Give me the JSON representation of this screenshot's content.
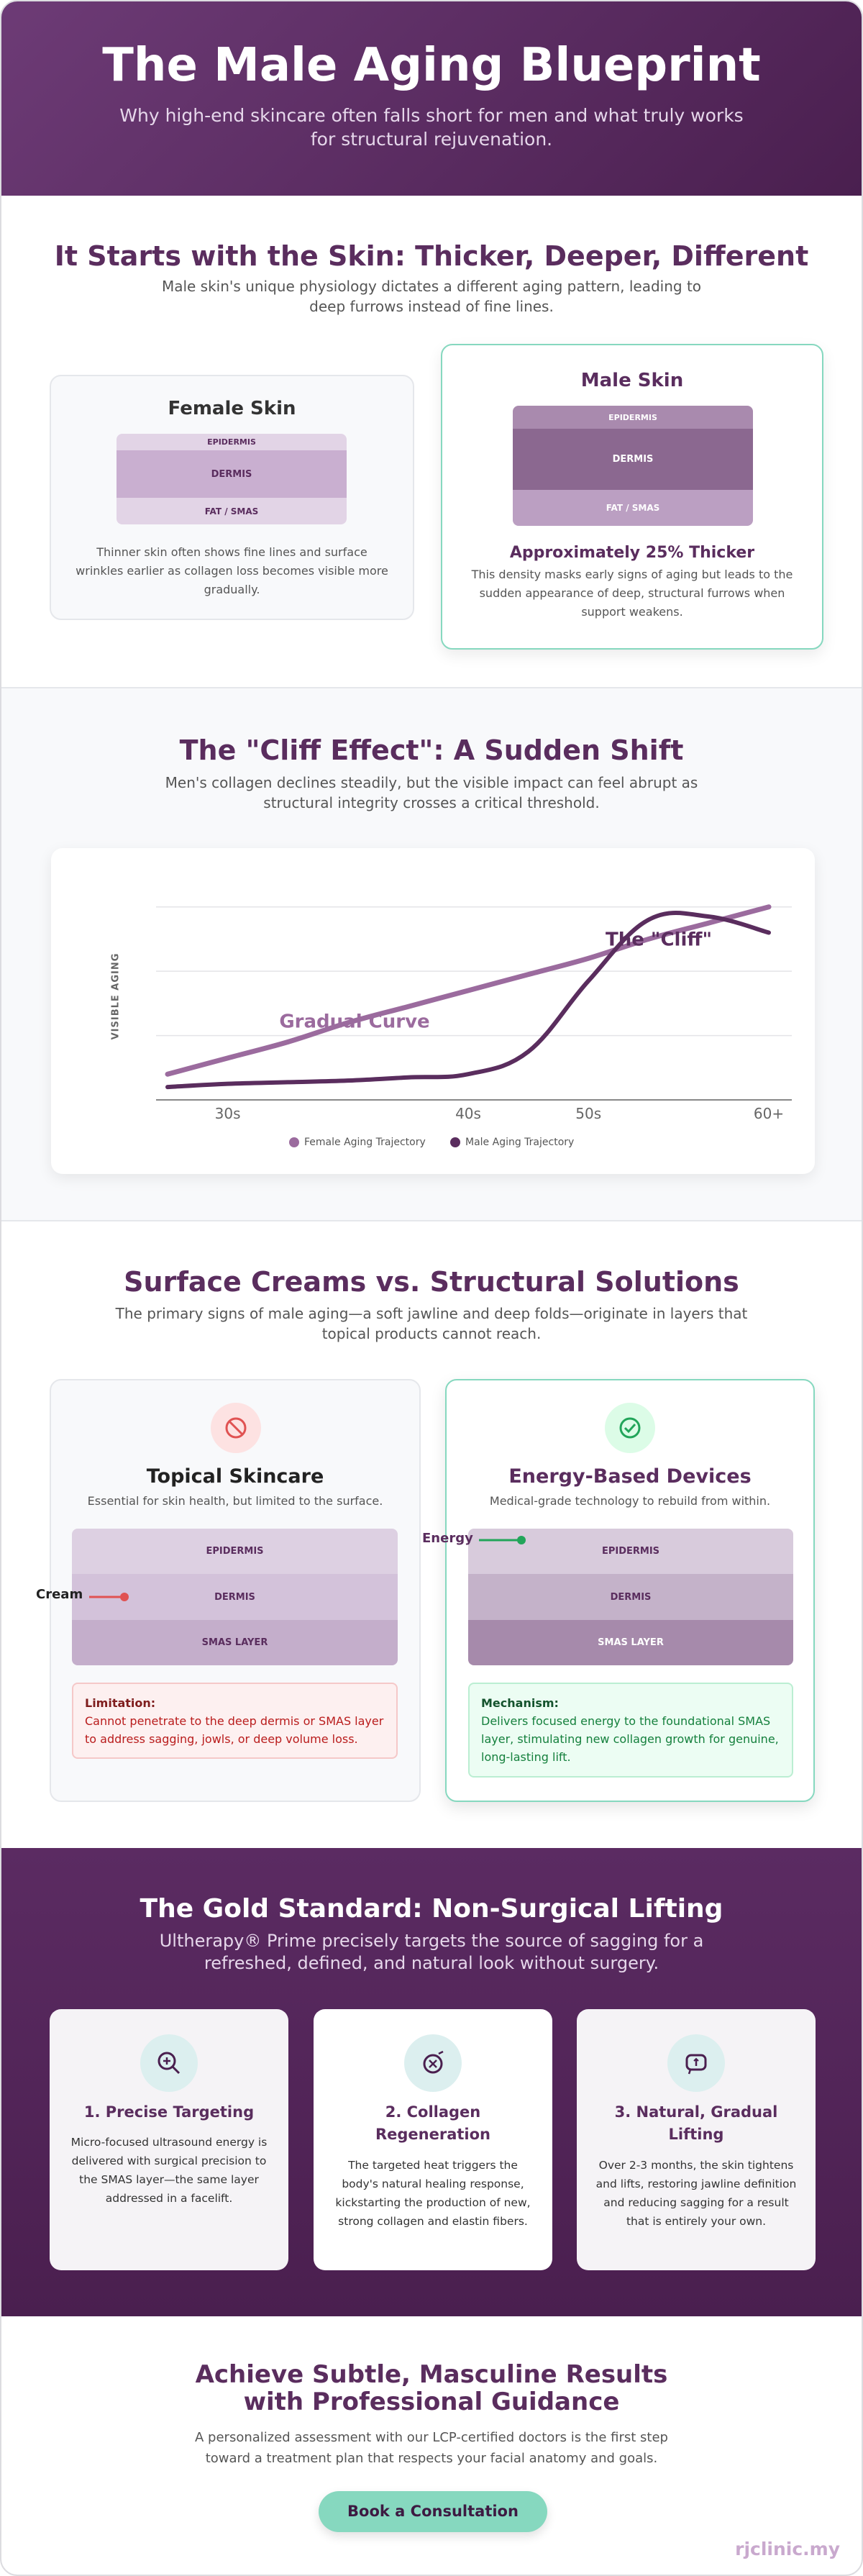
{
  "header": {
    "title": "The Male Aging Blueprint",
    "subtitle": "Why high-end skincare often falls short for men and what truly works for structural rejuvenation."
  },
  "skin": {
    "title": "It Starts with the Skin: Thicker, Deeper, Different",
    "subtitle": "Male skin's unique physiology dictates a different aging pattern, leading to deep furrows instead of fine lines.",
    "female": {
      "title": "Female Skin",
      "layers": [
        "EPIDERMIS",
        "DERMIS",
        "FAT / SMAS"
      ],
      "text": "Thinner skin often shows fine lines and surface wrinkles earlier as collagen loss becomes visible more gradually."
    },
    "male": {
      "title": "Male Skin",
      "layers": [
        "EPIDERMIS",
        "DERMIS",
        "FAT / SMAS"
      ],
      "highlight": "Approximately 25% Thicker",
      "text": "This density masks early signs of aging but leads to the sudden appearance of deep, structural furrows when support weakens."
    }
  },
  "cliff": {
    "title": "The \"Cliff Effect\": A Sudden Shift",
    "subtitle": "Men's collagen declines steadily, but the visible impact can feel abrupt as structural integrity crosses a critical threshold."
  },
  "chart_data": {
    "type": "line",
    "y_label": "VISIBLE AGING",
    "categories": [
      null,
      "30s",
      null,
      null,
      null,
      "40s",
      null,
      "50s",
      null,
      null,
      "60+"
    ],
    "series": [
      {
        "name": "Female Aging Trajectory",
        "color": "#9b6b9e",
        "values": [
          8,
          13,
          18,
          24,
          29,
          34,
          39,
          44,
          50,
          55,
          60
        ]
      },
      {
        "name": "Male Aging Trajectory",
        "color": "#5a2d5e",
        "values": [
          4,
          5,
          5.5,
          6,
          7,
          8,
          15,
          37,
          56,
          57,
          52
        ]
      }
    ],
    "annotations": [
      "Gradual Curve",
      "The \"Cliff\""
    ],
    "ylim": [
      0,
      70
    ],
    "yticks": [
      0,
      20,
      40,
      60
    ],
    "grid": true,
    "legend": "bottom"
  },
  "comparison": {
    "title": "Surface Creams vs. Structural Solutions",
    "subtitle": "The primary signs of male aging—a soft jawline and deep folds—originate in layers that topical products cannot reach.",
    "topical": {
      "title": "Topical Skincare",
      "subtitle": "Essential for skin health, but limited to the surface.",
      "layers": [
        "EPIDERMIS",
        "DERMIS",
        "SMAS LAYER"
      ],
      "marker": "Cream",
      "note_label": "Limitation:",
      "note": "Cannot penetrate to the deep dermis or SMAS layer to address sagging, jowls, or deep volume loss."
    },
    "energy": {
      "title": "Energy-Based Devices",
      "subtitle": "Medical-grade technology to rebuild from within.",
      "layers": [
        "EPIDERMIS",
        "DERMIS",
        "SMAS LAYER"
      ],
      "marker": "Energy",
      "note_label": "Mechanism:",
      "note": "Delivers focused energy to the foundational SMAS layer, stimulating new collagen growth for genuine, long-lasting lift."
    }
  },
  "gold": {
    "title": "The Gold Standard: Non-Surgical Lifting",
    "subtitle": "Ultherapy® Prime precisely targets the source of sagging for a refreshed, defined, and natural look without surgery.",
    "steps": [
      {
        "title": "1. Precise Targeting",
        "text": "Micro-focused ultrasound energy is delivered with surgical precision to the SMAS layer—the same layer addressed in a facelift."
      },
      {
        "title": "2. Collagen Regeneration",
        "text": "The targeted heat triggers the body's natural healing response, kickstarting the production of new, strong collagen and elastin fibers."
      },
      {
        "title": "3. Natural, Gradual Lifting",
        "text": "Over 2-3 months, the skin tightens and lifts, restoring jawline definition and reducing sagging for a result that is entirely your own."
      }
    ]
  },
  "cta": {
    "title": "Achieve Subtle, Masculine Results with Professional Guidance",
    "text": "A personalized assessment with our LCP-certified doctors is the first step toward a treatment plan that respects your facial anatomy and goals.",
    "button": "Book a Consultation",
    "brand": "rjclinic.my"
  }
}
